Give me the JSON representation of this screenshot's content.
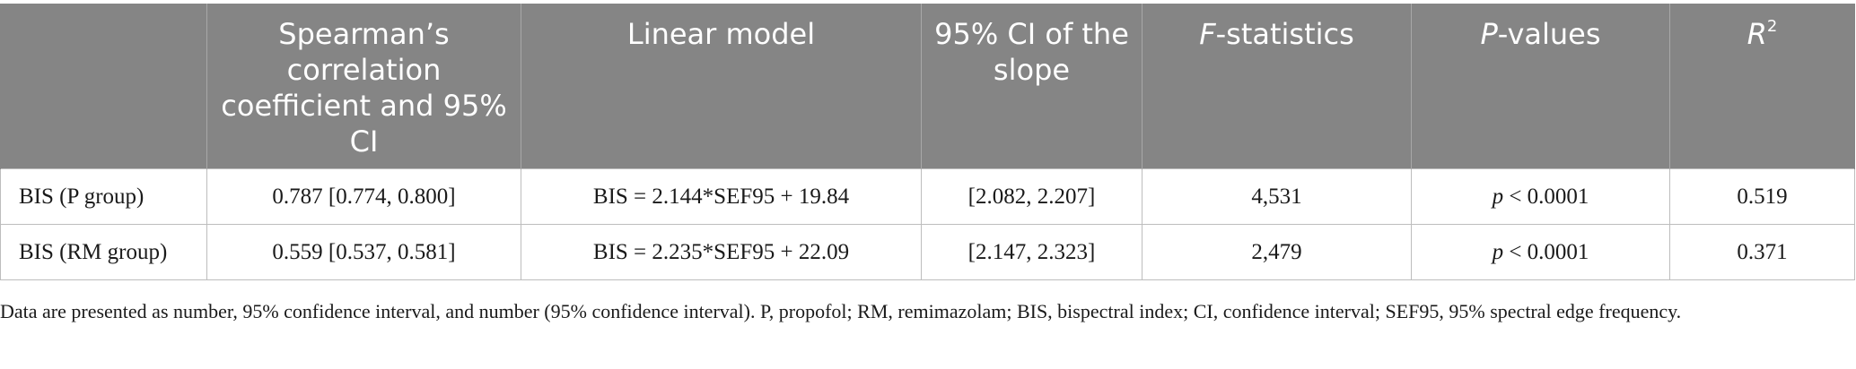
{
  "table": {
    "headers": [
      {
        "key": "blank",
        "text": ""
      },
      {
        "key": "spearman",
        "text": "Spearman’s correlation coefficient and 95% CI"
      },
      {
        "key": "linear",
        "text": "Linear model"
      },
      {
        "key": "ci_slope",
        "text": "95% CI of the slope"
      },
      {
        "key": "f_stat_italic",
        "text": "F",
        "suffix": "-statistics"
      },
      {
        "key": "p_values_italic",
        "text": "P",
        "suffix": "-values"
      },
      {
        "key": "r2",
        "text": "R",
        "sup": "2"
      }
    ],
    "rows": [
      {
        "label": "BIS (P group)",
        "spearman": "0.787 [0.774, 0.800]",
        "linear": "BIS = 2.144*SEF95 + 19.84",
        "ci_slope": "[2.082, 2.207]",
        "f_stat": "4,531",
        "p_italic": "p",
        "p_value": " < 0.0001",
        "r2": "0.519"
      },
      {
        "label": "BIS (RM group)",
        "spearman": "0.559 [0.537, 0.581]",
        "linear": "BIS = 2.235*SEF95 + 22.09",
        "ci_slope": "[2.147, 2.323]",
        "f_stat": "2,479",
        "p_italic": "p",
        "p_value": " < 0.0001",
        "r2": "0.371"
      }
    ]
  },
  "footnote": "Data are presented as number, 95% confidence interval, and number (95% confidence interval). P, propofol; RM, remimazolam; BIS, bispectral index; CI, confidence interval; SEF95, 95% spectral edge frequency."
}
